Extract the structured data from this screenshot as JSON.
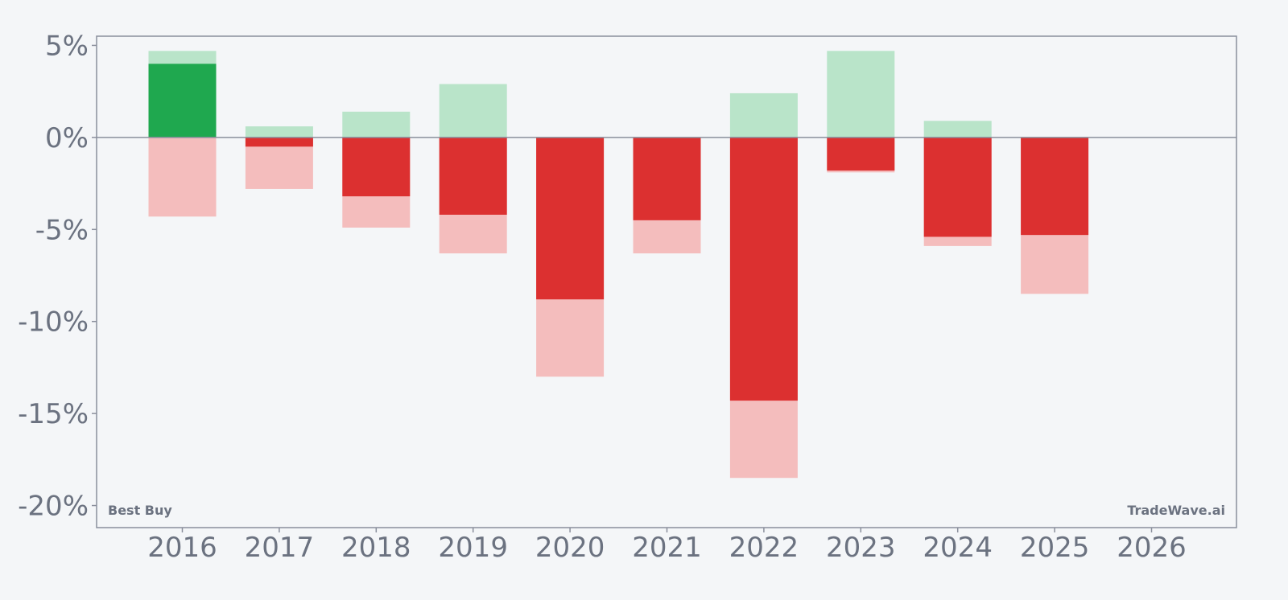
{
  "chart_data": {
    "type": "bar",
    "categories": [
      "2016",
      "2017",
      "2018",
      "2019",
      "2020",
      "2021",
      "2022",
      "2023",
      "2024",
      "2025",
      "2026"
    ],
    "series": [
      {
        "values": [
          4.0,
          -0.5,
          -3.2,
          -4.2,
          -8.8,
          -4.5,
          -14.3,
          -1.8,
          -5.4,
          -5.3,
          null
        ]
      },
      {
        "values": [
          4.7,
          0.6,
          1.4,
          2.9,
          0.0,
          0.0,
          2.4,
          4.7,
          0.9,
          0.0,
          null
        ]
      },
      {
        "values": [
          -4.3,
          -2.8,
          -4.9,
          -6.3,
          -13.0,
          -6.3,
          -18.5,
          -1.9,
          -5.9,
          -8.5,
          null
        ]
      }
    ],
    "ylim": [
      -21.2,
      5.5
    ],
    "yticks": [
      5,
      0,
      -5,
      -10,
      -15,
      -20
    ],
    "ytick_labels": [
      "5%",
      "0%",
      "-5%",
      "-10%",
      "-15%",
      "-20%"
    ],
    "grid": false,
    "colors": {
      "positive": "#1fa84f",
      "negative": "#dc3030",
      "range_high": "#b9e4c9",
      "range_low": "#f4bdbd",
      "axis": "#8a8f9c",
      "text": "#6b7280"
    }
  },
  "labels": {
    "ticker": "Best Buy",
    "brand": "TradeWave.ai"
  }
}
